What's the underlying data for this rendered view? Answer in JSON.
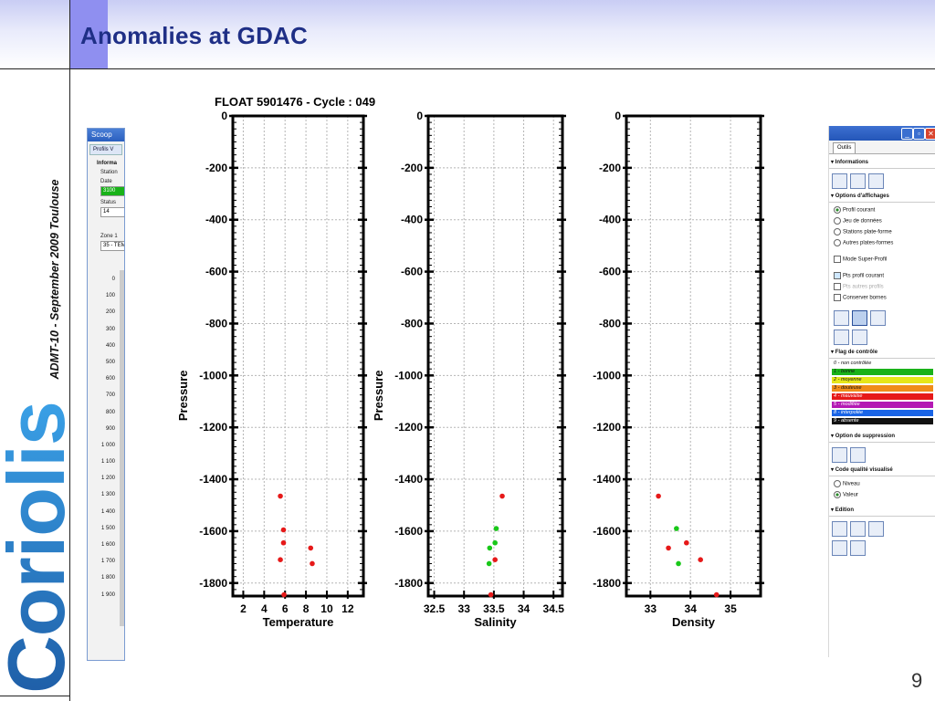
{
  "slide": {
    "title": "Anomalies at GDAC",
    "side_text": "ADMT-10 - September 2009  Toulouse",
    "logo": "Coriolis",
    "page_number": "9"
  },
  "left_panel": {
    "title": "Scoop",
    "tab": "Profils V",
    "section": "Informa",
    "group": "Station",
    "date_label": "Date",
    "date_value": "3100",
    "status_label": "Status",
    "status_value": "14",
    "zone_label": "Zone 1",
    "zone_value": "35 - TEM",
    "ticks": [
      "0",
      "100",
      "200",
      "300",
      "400",
      "500",
      "600",
      "700",
      "800",
      "900",
      "1 000",
      "1 100",
      "1 200",
      "1 300",
      "1 400",
      "1 500",
      "1 600",
      "1 700",
      "1 800",
      "1 900"
    ]
  },
  "right_panel": {
    "tab": "Outils",
    "sections": {
      "informations": "Informations",
      "options": "Options d'affichages",
      "flag": "Flag de contrôle",
      "suppression": "Option de suppression",
      "code": "Code qualité visualisé",
      "edition": "Edition"
    },
    "options_items": [
      "Profil courant",
      "Jeu de données",
      "Stations plate-forme",
      "Autres plates-formes"
    ],
    "check_items": [
      "Mode Super-Profil",
      "Pts profil courant",
      "Pts autres profils",
      "Conserver bornes"
    ],
    "flags": [
      {
        "label": "0 - non contrôlée",
        "color": "#ffffff"
      },
      {
        "label": "1 - bonne",
        "color": "#19b219"
      },
      {
        "label": "2 - moyenne",
        "color": "#e6e619"
      },
      {
        "label": "3 - douteuse",
        "color": "#f08c19"
      },
      {
        "label": "4 - mauvaise",
        "color": "#e61919"
      },
      {
        "label": "5 - modifiée",
        "color": "#b419b4"
      },
      {
        "label": "8 - interpolée",
        "color": "#1964e6"
      },
      {
        "label": "9 - absente",
        "color": "#111111"
      }
    ],
    "code_items": [
      "Niveau",
      "Valeur"
    ]
  },
  "chart_data": [
    {
      "type": "scatter",
      "title": "FLOAT 5901476 - Cycle : 049",
      "xlabel": "Temperature",
      "ylabel": "Pressure",
      "xlim": [
        1,
        13.5
      ],
      "ylim": [
        -1850,
        0
      ],
      "xticks": [
        2,
        4,
        6,
        8,
        10,
        12
      ],
      "yticks": [
        0,
        -200,
        -400,
        -600,
        -800,
        -1000,
        -1200,
        -1400,
        -1600,
        -1800
      ],
      "grid": true,
      "points": [
        {
          "x": 5.55,
          "y": -1465,
          "color": "#e61919"
        },
        {
          "x": 5.85,
          "y": -1595,
          "color": "#e61919"
        },
        {
          "x": 5.85,
          "y": -1645,
          "color": "#e61919"
        },
        {
          "x": 8.45,
          "y": -1665,
          "color": "#e61919"
        },
        {
          "x": 5.55,
          "y": -1710,
          "color": "#e61919"
        },
        {
          "x": 8.6,
          "y": -1725,
          "color": "#e61919"
        },
        {
          "x": 5.9,
          "y": -1845,
          "color": "#e61919"
        }
      ]
    },
    {
      "type": "scatter",
      "title": "",
      "xlabel": "Salinity",
      "ylabel": "Pressure",
      "xlim": [
        32.4,
        34.65
      ],
      "ylim": [
        -1850,
        0
      ],
      "xticks": [
        32.5,
        33,
        33.5,
        34,
        34.5
      ],
      "yticks": [
        0,
        -200,
        -400,
        -600,
        -800,
        -1000,
        -1200,
        -1400,
        -1600,
        -1800
      ],
      "grid": true,
      "points": [
        {
          "x": 33.64,
          "y": -1465,
          "color": "#e61919"
        },
        {
          "x": 33.54,
          "y": -1590,
          "color": "#19c819"
        },
        {
          "x": 33.52,
          "y": -1645,
          "color": "#19c819"
        },
        {
          "x": 33.43,
          "y": -1665,
          "color": "#19c819"
        },
        {
          "x": 33.52,
          "y": -1710,
          "color": "#e61919"
        },
        {
          "x": 33.42,
          "y": -1725,
          "color": "#19c819"
        },
        {
          "x": 33.45,
          "y": -1845,
          "color": "#e61919"
        }
      ]
    },
    {
      "type": "scatter",
      "title": "",
      "xlabel": "Density",
      "ylabel": "",
      "xlim": [
        32.4,
        35.75
      ],
      "ylim": [
        -1850,
        0
      ],
      "xticks": [
        33,
        34,
        35
      ],
      "yticks": [
        0,
        -200,
        -400,
        -600,
        -800,
        -1000,
        -1200,
        -1400,
        -1600,
        -1800
      ],
      "grid": true,
      "points": [
        {
          "x": 33.2,
          "y": -1465,
          "color": "#e61919"
        },
        {
          "x": 33.65,
          "y": -1590,
          "color": "#19c819"
        },
        {
          "x": 33.9,
          "y": -1645,
          "color": "#e61919"
        },
        {
          "x": 33.45,
          "y": -1665,
          "color": "#e61919"
        },
        {
          "x": 34.25,
          "y": -1710,
          "color": "#e61919"
        },
        {
          "x": 33.7,
          "y": -1725,
          "color": "#19c819"
        },
        {
          "x": 34.65,
          "y": -1845,
          "color": "#e61919"
        }
      ]
    }
  ]
}
